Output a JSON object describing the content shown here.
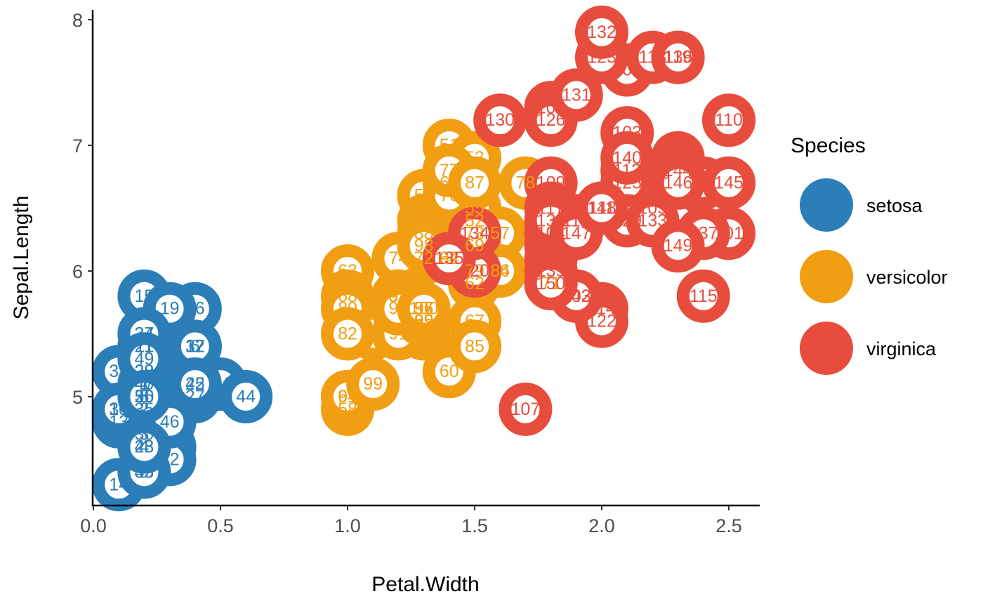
{
  "chart_data": {
    "type": "scatter",
    "xlabel": "Petal.Width",
    "ylabel": "Sepal.Length",
    "xlim": [
      0.0,
      2.6
    ],
    "ylim": [
      4.2,
      8.05
    ],
    "xticks": [
      0.0,
      0.5,
      1.0,
      1.5,
      2.0,
      2.5
    ],
    "xtick_labels": [
      "0.0",
      "0.5",
      "1.0",
      "1.5",
      "2.0",
      "2.5"
    ],
    "yticks": [
      5,
      6,
      7,
      8
    ],
    "ytick_labels": [
      "5",
      "6",
      "7",
      "8"
    ],
    "grid": false,
    "legend": {
      "title": "Species",
      "position": "right"
    },
    "series": [
      {
        "name": "setosa",
        "color": "#2B7EB8",
        "points": [
          [
            0.2,
            5.1,
            "1"
          ],
          [
            0.2,
            4.9,
            "2"
          ],
          [
            0.2,
            4.7,
            "3"
          ],
          [
            0.2,
            4.6,
            "4"
          ],
          [
            0.2,
            5.0,
            "5"
          ],
          [
            0.4,
            5.4,
            "6"
          ],
          [
            0.3,
            4.6,
            "7"
          ],
          [
            0.2,
            5.0,
            "8"
          ],
          [
            0.2,
            4.4,
            "9"
          ],
          [
            0.1,
            4.9,
            "10"
          ],
          [
            0.2,
            5.4,
            "11"
          ],
          [
            0.2,
            4.8,
            "12"
          ],
          [
            0.1,
            4.8,
            "13"
          ],
          [
            0.1,
            4.3,
            "14"
          ],
          [
            0.2,
            5.8,
            "15"
          ],
          [
            0.4,
            5.7,
            "16"
          ],
          [
            0.4,
            5.4,
            "17"
          ],
          [
            0.3,
            5.1,
            "18"
          ],
          [
            0.3,
            5.7,
            "19"
          ],
          [
            0.3,
            5.1,
            "20"
          ],
          [
            0.2,
            5.4,
            "21"
          ],
          [
            0.4,
            5.1,
            "22"
          ],
          [
            0.2,
            4.6,
            "23"
          ],
          [
            0.5,
            5.1,
            "24"
          ],
          [
            0.2,
            4.8,
            "25"
          ],
          [
            0.2,
            5.0,
            "26"
          ],
          [
            0.4,
            5.0,
            "27"
          ],
          [
            0.2,
            5.2,
            "28"
          ],
          [
            0.2,
            5.2,
            "29"
          ],
          [
            0.2,
            4.7,
            "30"
          ],
          [
            0.2,
            4.8,
            "31"
          ],
          [
            0.4,
            5.4,
            "32"
          ],
          [
            0.1,
            5.2,
            "33"
          ],
          [
            0.2,
            5.5,
            "34"
          ],
          [
            0.2,
            4.9,
            "35"
          ],
          [
            0.2,
            5.0,
            "36"
          ],
          [
            0.2,
            5.5,
            "37"
          ],
          [
            0.1,
            4.9,
            "38"
          ],
          [
            0.2,
            4.4,
            "39"
          ],
          [
            0.2,
            5.1,
            "40"
          ],
          [
            0.3,
            5.0,
            "41"
          ],
          [
            0.3,
            4.5,
            "42"
          ],
          [
            0.2,
            4.4,
            "43"
          ],
          [
            0.6,
            5.0,
            "44"
          ],
          [
            0.4,
            5.1,
            "45"
          ],
          [
            0.3,
            4.8,
            "46"
          ],
          [
            0.2,
            5.1,
            "47"
          ],
          [
            0.2,
            4.6,
            "48"
          ],
          [
            0.2,
            5.3,
            "49"
          ],
          [
            0.2,
            5.0,
            "50"
          ]
        ]
      },
      {
        "name": "versicolor",
        "color": "#F29E12",
        "points": [
          [
            1.4,
            7.0,
            "51"
          ],
          [
            1.5,
            6.4,
            "52"
          ],
          [
            1.5,
            6.9,
            "53"
          ],
          [
            1.3,
            5.5,
            "54"
          ],
          [
            1.5,
            6.5,
            "55"
          ],
          [
            1.3,
            5.7,
            "56"
          ],
          [
            1.6,
            6.3,
            "57"
          ],
          [
            1.0,
            4.9,
            "58"
          ],
          [
            1.3,
            6.6,
            "59"
          ],
          [
            1.4,
            5.2,
            "60"
          ],
          [
            1.0,
            5.0,
            "61"
          ],
          [
            1.5,
            5.9,
            "62"
          ],
          [
            1.0,
            6.0,
            "63"
          ],
          [
            1.4,
            6.1,
            "64"
          ],
          [
            1.3,
            5.6,
            "65"
          ],
          [
            1.4,
            6.7,
            "66"
          ],
          [
            1.5,
            5.6,
            "67"
          ],
          [
            1.0,
            5.8,
            "68"
          ],
          [
            1.5,
            6.2,
            "69"
          ],
          [
            1.1,
            5.6,
            "70"
          ],
          [
            1.8,
            5.9,
            "71"
          ],
          [
            1.3,
            6.1,
            "72"
          ],
          [
            1.5,
            6.3,
            "73"
          ],
          [
            1.2,
            6.1,
            "74"
          ],
          [
            1.3,
            6.4,
            "75"
          ],
          [
            1.4,
            6.6,
            "76"
          ],
          [
            1.4,
            6.8,
            "77"
          ],
          [
            1.7,
            6.7,
            "78"
          ],
          [
            1.5,
            6.0,
            "79"
          ],
          [
            1.0,
            5.7,
            "80"
          ],
          [
            1.1,
            5.5,
            "81"
          ],
          [
            1.0,
            5.5,
            "82"
          ],
          [
            1.2,
            5.8,
            "83"
          ],
          [
            1.6,
            6.0,
            "84"
          ],
          [
            1.5,
            5.4,
            "85"
          ],
          [
            1.6,
            6.0,
            "86"
          ],
          [
            1.5,
            6.7,
            "87"
          ],
          [
            1.3,
            6.3,
            "88"
          ],
          [
            1.3,
            5.6,
            "89"
          ],
          [
            1.3,
            5.5,
            "90"
          ],
          [
            1.2,
            5.5,
            "91"
          ],
          [
            1.4,
            6.1,
            "92"
          ],
          [
            1.2,
            5.8,
            "93"
          ],
          [
            1.0,
            5.0,
            "94"
          ],
          [
            1.3,
            5.6,
            "95"
          ],
          [
            1.2,
            5.7,
            "96"
          ],
          [
            1.3,
            5.7,
            "97"
          ],
          [
            1.3,
            6.2,
            "98"
          ],
          [
            1.1,
            5.1,
            "99"
          ],
          [
            1.3,
            5.7,
            "100"
          ]
        ]
      },
      {
        "name": "virginica",
        "color": "#E84C3C",
        "points": [
          [
            2.5,
            6.3,
            "101"
          ],
          [
            1.9,
            5.8,
            "102"
          ],
          [
            2.1,
            7.1,
            "103"
          ],
          [
            1.8,
            6.3,
            "104"
          ],
          [
            2.2,
            6.5,
            "105"
          ],
          [
            2.1,
            7.6,
            "106"
          ],
          [
            1.7,
            4.9,
            "107"
          ],
          [
            1.8,
            7.3,
            "108"
          ],
          [
            1.8,
            6.7,
            "109"
          ],
          [
            2.5,
            7.2,
            "110"
          ],
          [
            2.0,
            6.5,
            "111"
          ],
          [
            1.9,
            6.4,
            "112"
          ],
          [
            2.1,
            6.8,
            "113"
          ],
          [
            2.0,
            5.7,
            "114"
          ],
          [
            2.4,
            5.8,
            "115"
          ],
          [
            2.3,
            6.4,
            "116"
          ],
          [
            1.8,
            6.5,
            "117"
          ],
          [
            2.2,
            7.7,
            "118"
          ],
          [
            2.3,
            7.7,
            "119"
          ],
          [
            1.5,
            6.0,
            "120"
          ],
          [
            2.3,
            6.9,
            "121"
          ],
          [
            2.0,
            5.6,
            "122"
          ],
          [
            2.0,
            7.7,
            "123"
          ],
          [
            1.8,
            6.3,
            "124"
          ],
          [
            2.1,
            6.7,
            "125"
          ],
          [
            1.8,
            7.2,
            "126"
          ],
          [
            1.8,
            6.2,
            "127"
          ],
          [
            1.8,
            6.1,
            "128"
          ],
          [
            2.1,
            6.4,
            "129"
          ],
          [
            1.6,
            7.2,
            "130"
          ],
          [
            1.9,
            7.4,
            "131"
          ],
          [
            2.0,
            7.9,
            "132"
          ],
          [
            2.2,
            6.4,
            "133"
          ],
          [
            1.5,
            6.3,
            "134"
          ],
          [
            1.4,
            6.1,
            "135"
          ],
          [
            2.3,
            7.7,
            "136"
          ],
          [
            2.4,
            6.3,
            "137"
          ],
          [
            1.8,
            6.4,
            "138"
          ],
          [
            1.8,
            6.0,
            "139"
          ],
          [
            2.1,
            6.9,
            "140"
          ],
          [
            2.4,
            6.7,
            "141"
          ],
          [
            2.3,
            6.9,
            "142"
          ],
          [
            1.9,
            5.8,
            "143"
          ],
          [
            2.3,
            6.8,
            "144"
          ],
          [
            2.5,
            6.7,
            "145"
          ],
          [
            2.3,
            6.7,
            "146"
          ],
          [
            1.9,
            6.3,
            "147"
          ],
          [
            2.0,
            6.5,
            "148"
          ],
          [
            2.3,
            6.2,
            "149"
          ],
          [
            1.8,
            5.9,
            "150"
          ]
        ]
      }
    ]
  }
}
